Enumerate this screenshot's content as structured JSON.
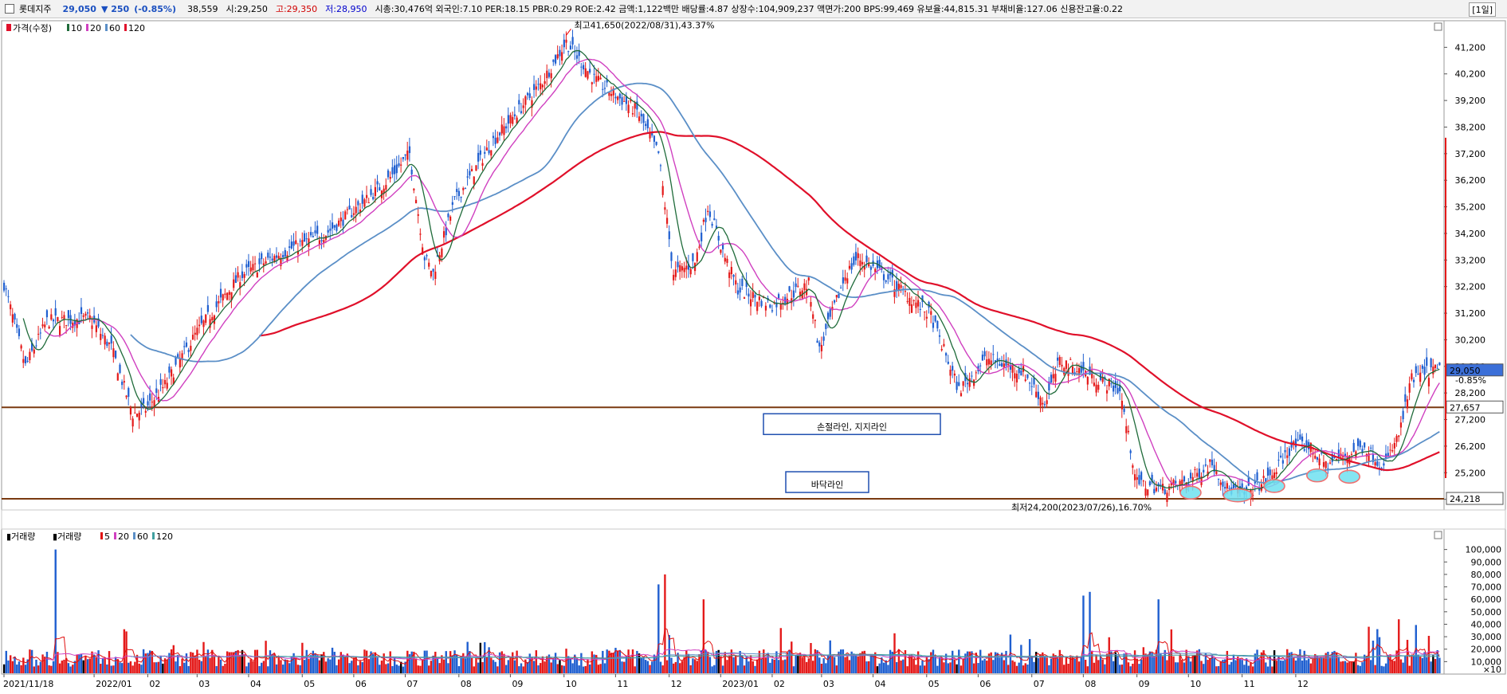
{
  "header": {
    "stock_name": "롯데지주",
    "price": "29,050",
    "change": "▼ 250",
    "change_pct": "(-0.85%)",
    "volume": "38,559",
    "open_label": "시:",
    "open": "29,250",
    "high_label": "고:",
    "high": "29,350",
    "low_label": "저:",
    "low": "28,950",
    "metrics": "시총:30,476억 외국인:7.10 PER:18.15 PBR:0.29 ROE:2.42 금액:1,122백만 배당률:4.87 상장수:104,909,237 액면가:200 BPS:99,469 유보율:44,815.31 부채비율:127.06 신용잔고율:0.22",
    "period": "[1일]"
  },
  "price_legend": {
    "label": "가격(수정)",
    "ma": [
      "10",
      "20",
      "60",
      "120"
    ],
    "colors": [
      "#1f6b3a",
      "#d040c0",
      "#5b8fc7",
      "#e0102a"
    ]
  },
  "volume_legend": {
    "label1": "거래량",
    "label2": "거래량",
    "ma": [
      "5",
      "20",
      "60",
      "120"
    ],
    "colors": [
      "#e01010",
      "#d040c0",
      "#5b8fc7",
      "#40a0a0"
    ]
  },
  "chart_data": {
    "type": "candlestick",
    "x_ticks": [
      "2021/11/18",
      "2022/01",
      "02",
      "03",
      "04",
      "05",
      "06",
      "07",
      "08",
      "09",
      "10",
      "11",
      "12",
      "2023/01",
      "02",
      "03",
      "04",
      "05",
      "06",
      "07",
      "08",
      "09",
      "10",
      "11",
      "12"
    ],
    "y_ticks": [
      "41,200",
      "40,200",
      "39,200",
      "38,200",
      "37,200",
      "36,200",
      "35,200",
      "34,200",
      "33,200",
      "32,200",
      "31,200",
      "30,200",
      "29,200",
      "28,200",
      "27,200",
      "26,200",
      "25,200",
      "24,200"
    ],
    "ylim": [
      23800,
      42200
    ],
    "high_annotation": "최고41,650(2022/08/31),43.37%",
    "low_annotation": "최저24,200(2023/07/26),16.70%",
    "last_price": "29,050",
    "last_change": "-0.85%",
    "support_line": {
      "value": 27657,
      "label": "27,657",
      "text": "손절라인, 지지라인"
    },
    "floor_line": {
      "value": 24218,
      "label": "24,218",
      "text": "바닥라인"
    },
    "close_anchors": [
      [
        0,
        32300
      ],
      [
        10,
        29200
      ],
      [
        20,
        30900
      ],
      [
        40,
        31000
      ],
      [
        50,
        29900
      ],
      [
        60,
        27400
      ],
      [
        66,
        27600
      ],
      [
        75,
        28500
      ],
      [
        90,
        30500
      ],
      [
        110,
        32600
      ],
      [
        130,
        33500
      ],
      [
        150,
        34200
      ],
      [
        168,
        35400
      ],
      [
        180,
        36300
      ],
      [
        189,
        37200
      ],
      [
        196,
        33300
      ],
      [
        200,
        32700
      ],
      [
        210,
        35400
      ],
      [
        228,
        37700
      ],
      [
        250,
        39800
      ],
      [
        262,
        41400
      ],
      [
        275,
        40000
      ],
      [
        295,
        38800
      ],
      [
        305,
        37200
      ],
      [
        312,
        32700
      ],
      [
        322,
        33100
      ],
      [
        328,
        35200
      ],
      [
        336,
        33300
      ],
      [
        342,
        32100
      ],
      [
        358,
        31500
      ],
      [
        375,
        32300
      ],
      [
        380,
        29800
      ],
      [
        392,
        32600
      ],
      [
        398,
        33300
      ],
      [
        412,
        32500
      ],
      [
        432,
        31100
      ],
      [
        445,
        28300
      ],
      [
        458,
        29500
      ],
      [
        475,
        29000
      ],
      [
        485,
        27800
      ],
      [
        492,
        29400
      ],
      [
        498,
        29200
      ],
      [
        510,
        28700
      ],
      [
        520,
        28300
      ],
      [
        528,
        24800
      ],
      [
        540,
        24600
      ],
      [
        552,
        24900
      ],
      [
        563,
        25600
      ],
      [
        570,
        24600
      ],
      [
        578,
        24400
      ],
      [
        590,
        25000
      ],
      [
        600,
        26200
      ],
      [
        608,
        26200
      ],
      [
        616,
        25500
      ],
      [
        626,
        25900
      ],
      [
        634,
        26200
      ],
      [
        643,
        25400
      ],
      [
        650,
        26600
      ],
      [
        656,
        28700
      ],
      [
        663,
        29000
      ],
      [
        669,
        29050
      ]
    ],
    "volume_ylim": [
      0,
      110000
    ],
    "volume_ticks": [
      "100,000",
      "90,000",
      "80,000",
      "70,000",
      "60,000",
      "50,000",
      "40,000",
      "30,000",
      "20,000",
      "10,000"
    ],
    "volume_unit": "×10",
    "volume_spikes": [
      [
        24,
        100000
      ],
      [
        209,
        15000
      ],
      [
        305,
        72000
      ],
      [
        308,
        80000
      ],
      [
        326,
        60000
      ],
      [
        503,
        63000
      ],
      [
        506,
        66000
      ],
      [
        538,
        60000
      ],
      [
        636,
        38000
      ],
      [
        650,
        44000
      ]
    ]
  }
}
